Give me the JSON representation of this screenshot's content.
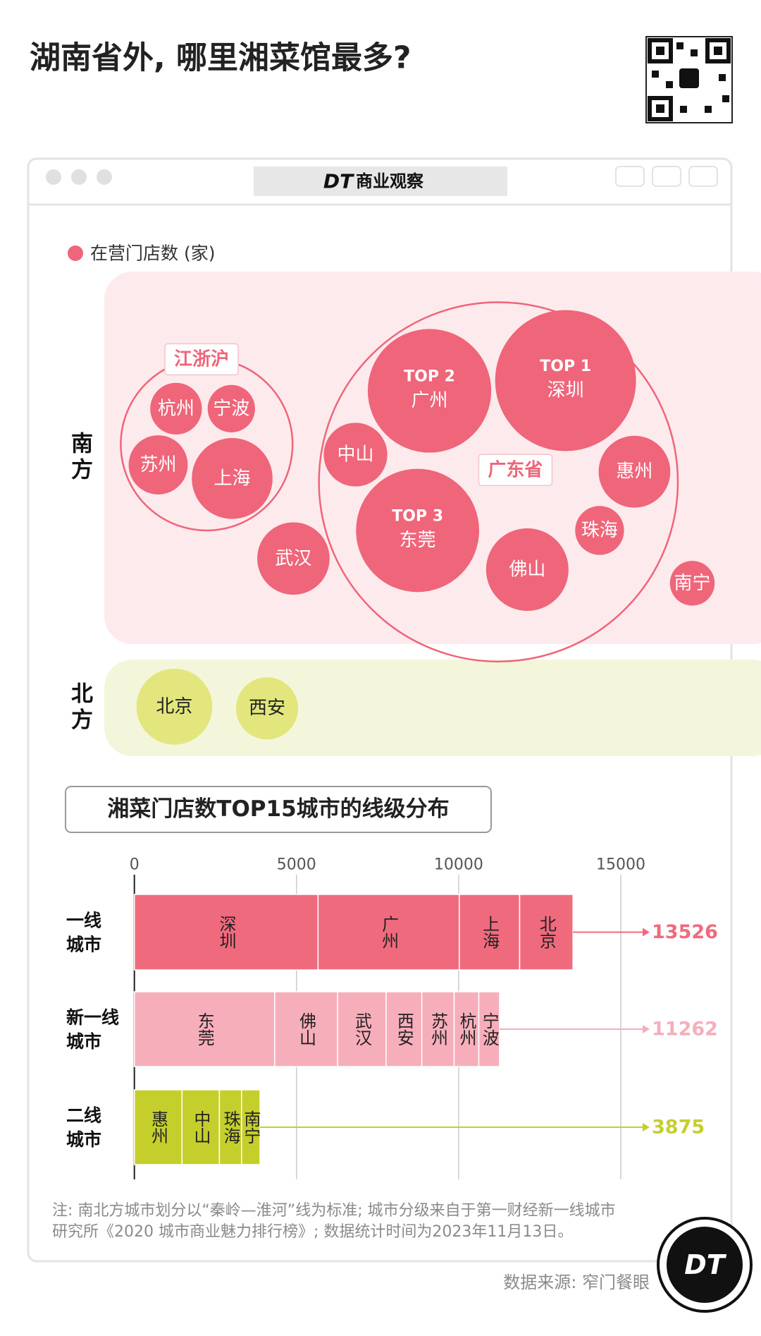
{
  "header": {
    "title": "湖南省外, 哪里湘菜馆最多?"
  },
  "window": {
    "logo": "DT",
    "brand": "商业观察"
  },
  "chart_data": [
    {
      "type": "bubble",
      "legend": "在营门店数 (家)",
      "clusters": [
        "江浙沪",
        "广东省"
      ],
      "series": [
        {
          "name": "南方",
          "color": "#ef6579",
          "background": "#fdeaed",
          "labels": [
            "深圳",
            "广州",
            "东莞",
            "上海",
            "佛山",
            "惠州",
            "武汉",
            "中山",
            "苏州",
            "杭州",
            "宁波",
            "珠海",
            "南宁"
          ],
          "ranks": [
            "TOP 1",
            "TOP 2",
            "TOP 3",
            null,
            null,
            null,
            null,
            null,
            null,
            null,
            null,
            null,
            null
          ],
          "values": [
            5665,
            4354,
            4327,
            1862,
            1941,
            1469,
            1495,
            1154,
            997,
            761,
            640,
            682,
            570
          ]
        },
        {
          "name": "北方",
          "color": "#e3e67c",
          "background": "#f4f6dc",
          "labels": [
            "北京",
            "西安"
          ],
          "values": [
            1645,
            1101
          ]
        }
      ]
    },
    {
      "type": "stacked-bar",
      "title": "湘菜门店数TOP15城市的线级分布",
      "categories": [
        "一线城市",
        "新一线城市",
        "二线城市"
      ],
      "colors": [
        "#f06a7e",
        "#f7aebb",
        "#c5cf2c"
      ],
      "segments": [
        [
          {
            "name": "深圳",
            "value": 5665
          },
          {
            "name": "广州",
            "value": 4354
          },
          {
            "name": "上海",
            "value": 1862
          },
          {
            "name": "北京",
            "value": 1645
          }
        ],
        [
          {
            "name": "东莞",
            "value": 4327
          },
          {
            "name": "佛山",
            "value": 1941
          },
          {
            "name": "武汉",
            "value": 1495
          },
          {
            "name": "西安",
            "value": 1101
          },
          {
            "name": "苏州",
            "value": 997
          },
          {
            "name": "杭州",
            "value": 761
          },
          {
            "name": "宁波",
            "value": 640
          }
        ],
        [
          {
            "name": "惠州",
            "value": 1469
          },
          {
            "name": "中山",
            "value": 1154
          },
          {
            "name": "珠海",
            "value": 682
          },
          {
            "name": "南宁",
            "value": 570
          }
        ]
      ],
      "totals": [
        13526,
        11262,
        3875
      ],
      "xlim": [
        0,
        15000
      ],
      "xticks": [
        0,
        5000,
        10000,
        15000
      ],
      "grid": true
    }
  ],
  "footer": {
    "note": "注: 南北方城市划分以“秦岭—淮河”线为标准; 城市分级来自于第一财经新一线城市研究所《2020 城市商业魅力排行榜》; 数据统计时间为2023年11月13日。",
    "source": "数据来源: 窄门餐眼",
    "logo": "DT"
  }
}
